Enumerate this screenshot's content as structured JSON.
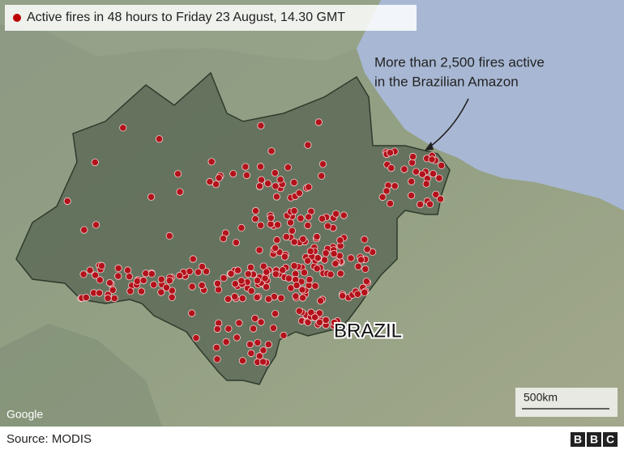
{
  "legend": {
    "label": "Active fires in 48 hours to Friday 23 August, 14.30 GMT"
  },
  "annotation": {
    "lines": [
      "More than 2,500 fires active",
      "in the Brazilian Amazon"
    ]
  },
  "map": {
    "country_label": "BRAZIL",
    "attribution": "Google"
  },
  "scale": {
    "label": "500km"
  },
  "footer": {
    "source": "Source: MODIS",
    "logo": [
      "B",
      "B",
      "C"
    ]
  }
}
